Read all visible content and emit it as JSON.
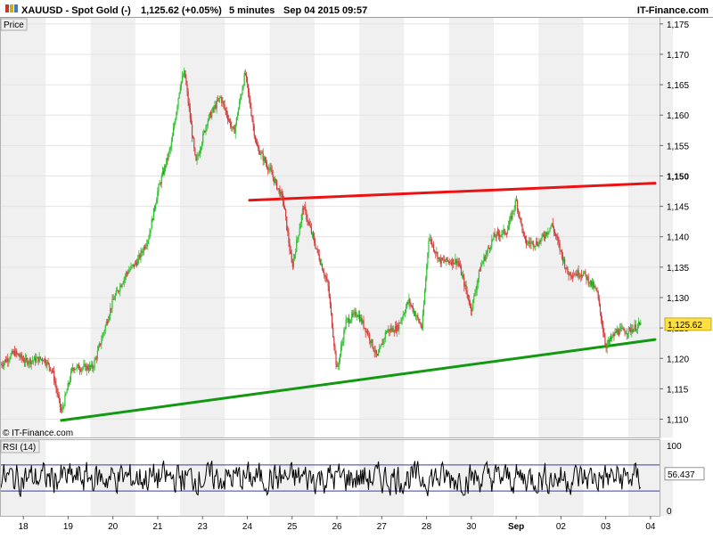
{
  "header": {
    "symbol": "XAUUSD - Spot Gold (-)",
    "quote": "1,125.62 (+0.05%)",
    "interval": "5 minutes",
    "datetime": "Sep 04 2015 09:57",
    "brand": "IT-Finance.com"
  },
  "panel_labels": {
    "price": "Price",
    "rsi": "RSI (14)",
    "watermark": "© IT-Finance.com"
  },
  "colors": {
    "up_candle": "#2fbf2f",
    "down_candle": "#d23a3a",
    "resistance": "#ee1111",
    "support": "#119911",
    "band_shade": "#f0f0f0",
    "last_price_bg": "#ffe040",
    "rsi_band": "#3a3ab0"
  },
  "chart_data": [
    {
      "type": "candlestick",
      "title": "XAUUSD - Spot Gold (-)",
      "ylabel": "Price",
      "ylim": [
        1107,
        1176
      ],
      "last_price": 1125.62,
      "last_price_label": "1,125.62",
      "y_ticks": [
        {
          "value": 1110,
          "label": "1,110",
          "bold": false
        },
        {
          "value": 1115,
          "label": "1,115",
          "bold": false
        },
        {
          "value": 1120,
          "label": "1,120",
          "bold": false
        },
        {
          "value": 1125,
          "label": "1,125",
          "bold": false
        },
        {
          "value": 1130,
          "label": "1,130",
          "bold": false
        },
        {
          "value": 1135,
          "label": "1,135",
          "bold": false
        },
        {
          "value": 1140,
          "label": "1,140",
          "bold": false
        },
        {
          "value": 1145,
          "label": "1,145",
          "bold": false
        },
        {
          "value": 1150,
          "label": "1,150",
          "bold": true
        },
        {
          "value": 1155,
          "label": "1,155",
          "bold": false
        },
        {
          "value": 1160,
          "label": "1,160",
          "bold": false
        },
        {
          "value": 1165,
          "label": "1,165",
          "bold": false
        },
        {
          "value": 1170,
          "label": "1,170",
          "bold": false
        },
        {
          "value": 1175,
          "label": "1,175",
          "bold": false
        }
      ],
      "x_ticks": [
        "18",
        "19",
        "20",
        "21",
        "23",
        "24",
        "25",
        "26",
        "27",
        "28",
        "30",
        "Sep",
        "02",
        "03",
        "04"
      ],
      "x_tick_bold": "Sep",
      "x_range": [
        0,
        14.7
      ],
      "price_path_anchors": [
        [
          0.0,
          1119.0
        ],
        [
          0.3,
          1121.0
        ],
        [
          0.55,
          1119.5
        ],
        [
          0.95,
          1120.0
        ],
        [
          1.15,
          1118.0
        ],
        [
          1.35,
          1111.0
        ],
        [
          1.6,
          1118.5
        ],
        [
          2.05,
          1118.5
        ],
        [
          2.2,
          1122.0
        ],
        [
          2.5,
          1129.5
        ],
        [
          2.8,
          1134.0
        ],
        [
          3.05,
          1136.0
        ],
        [
          3.3,
          1140.0
        ],
        [
          3.5,
          1147.5
        ],
        [
          3.8,
          1155.0
        ],
        [
          4.0,
          1165.0
        ],
        [
          4.1,
          1167.0
        ],
        [
          4.35,
          1152.0
        ],
        [
          4.6,
          1159.0
        ],
        [
          4.9,
          1163.0
        ],
        [
          5.2,
          1157.0
        ],
        [
          5.45,
          1167.0
        ],
        [
          5.7,
          1155.0
        ],
        [
          6.0,
          1151.0
        ],
        [
          6.3,
          1146.0
        ],
        [
          6.5,
          1135.0
        ],
        [
          6.75,
          1145.0
        ],
        [
          7.0,
          1139.0
        ],
        [
          7.3,
          1132.0
        ],
        [
          7.5,
          1118.0
        ],
        [
          7.7,
          1126.0
        ],
        [
          7.95,
          1127.5
        ],
        [
          8.2,
          1124.0
        ],
        [
          8.4,
          1120.0
        ],
        [
          8.6,
          1124.5
        ],
        [
          8.85,
          1125.0
        ],
        [
          9.1,
          1129.5
        ],
        [
          9.4,
          1125.0
        ],
        [
          9.55,
          1140.0
        ],
        [
          9.8,
          1136.0
        ],
        [
          10.2,
          1136.0
        ],
        [
          10.5,
          1128.0
        ],
        [
          10.7,
          1135.0
        ],
        [
          11.0,
          1140.0
        ],
        [
          11.3,
          1141.0
        ],
        [
          11.5,
          1146.0
        ],
        [
          11.7,
          1139.0
        ],
        [
          12.0,
          1139.0
        ],
        [
          12.3,
          1142.0
        ],
        [
          12.65,
          1134.0
        ],
        [
          13.0,
          1134.0
        ],
        [
          13.3,
          1131.0
        ],
        [
          13.5,
          1122.0
        ],
        [
          13.75,
          1124.5
        ],
        [
          14.0,
          1124.5
        ],
        [
          14.3,
          1125.62
        ]
      ],
      "trendlines": [
        {
          "name": "resistance",
          "from": [
            5.55,
            1146.0
          ],
          "to": [
            14.6,
            1148.8
          ]
        },
        {
          "name": "support",
          "from": [
            1.35,
            1109.8
          ],
          "to": [
            14.6,
            1123.1
          ]
        }
      ],
      "gridlines": true
    },
    {
      "type": "line",
      "ylabel": "RSI (14)",
      "ylim": [
        0,
        100
      ],
      "y_ticks": [
        {
          "value": 0,
          "label": "0"
        },
        {
          "value": 100,
          "label": "100"
        }
      ],
      "bands": [
        70,
        30
      ],
      "last_value": 56.437,
      "last_value_label": "56.437"
    }
  ]
}
